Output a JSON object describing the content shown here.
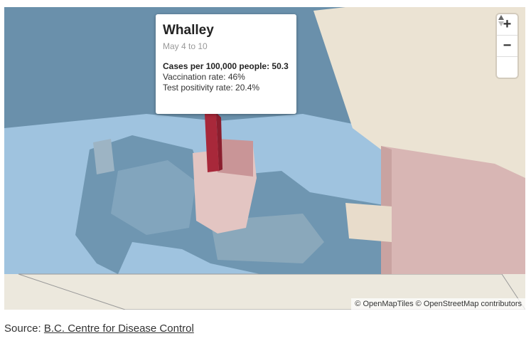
{
  "map": {
    "popup": {
      "title": "Whalley",
      "subtitle": "May 4 to 10",
      "lines": [
        "Cases per 100,000 people: 50.3",
        "Vaccination rate: 46%",
        "Test positivity rate: 20.4%"
      ]
    },
    "controls": {
      "zoom_in": "+",
      "zoom_out": "−"
    },
    "attribution": [
      "© OpenMapTiles",
      "© OpenStreetMap contributors"
    ]
  },
  "source": {
    "label": "Source:",
    "link": "B.C. Centre for Disease Control"
  }
}
